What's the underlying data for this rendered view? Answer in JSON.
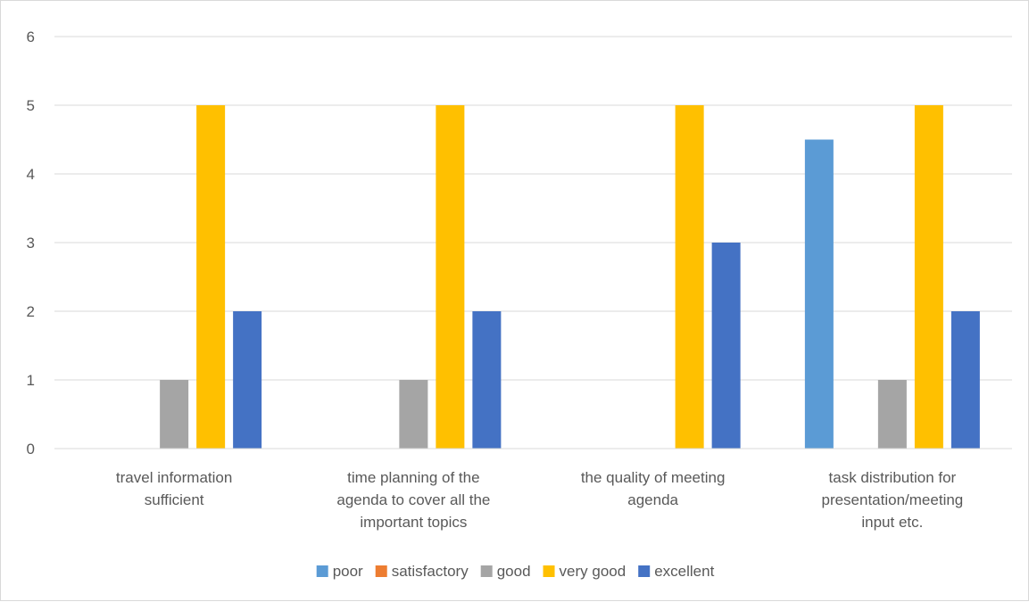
{
  "chart_data": {
    "type": "bar",
    "title": "",
    "xlabel": "",
    "ylabel": "",
    "ylim": [
      0,
      6
    ],
    "yticks": [
      "0",
      "1",
      "2",
      "3",
      "4",
      "5",
      "6"
    ],
    "grid": true,
    "legend_position": "bottom",
    "categories": [
      [
        "travel information",
        "sufficient"
      ],
      [
        "time planning of the",
        "agenda to cover all the",
        "important topics"
      ],
      [
        "the quality of meeting",
        "agenda"
      ],
      [
        "task distribution for",
        "presentation/meeting",
        "input etc."
      ]
    ],
    "series": [
      {
        "name": "poor",
        "color": "#5b9bd5",
        "values": [
          0,
          0,
          0,
          4.5
        ]
      },
      {
        "name": "satisfactory",
        "color": "#ed7d31",
        "values": [
          0,
          0,
          0,
          0
        ]
      },
      {
        "name": "good",
        "color": "#a5a5a5",
        "values": [
          1,
          1,
          0,
          1
        ]
      },
      {
        "name": "very good",
        "color": "#ffc000",
        "values": [
          5,
          5,
          5,
          5
        ]
      },
      {
        "name": "excellent",
        "color": "#4472c4",
        "values": [
          2,
          2,
          3,
          2
        ]
      }
    ]
  }
}
